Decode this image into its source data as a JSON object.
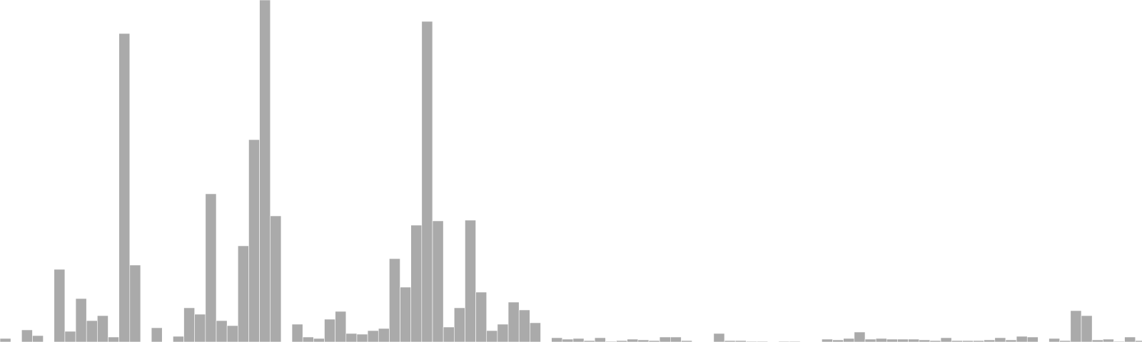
{
  "chart_data": {
    "type": "bar",
    "title": "",
    "xlabel": "",
    "ylabel": "",
    "ylim": [
      0,
      480
    ],
    "grid": false,
    "legend": "none",
    "bar_color": "#aaaaaa",
    "bar_edge_color": "#ffffff",
    "values": [
      5,
      0,
      17,
      9,
      0,
      102,
      15,
      61,
      30,
      37,
      7,
      433,
      108,
      0,
      20,
      0,
      8,
      48,
      39,
      208,
      30,
      23,
      135,
      284,
      480,
      177,
      0,
      25,
      7,
      5,
      32,
      43,
      12,
      11,
      16,
      19,
      117,
      77,
      164,
      450,
      170,
      21,
      48,
      171,
      70,
      16,
      25,
      56,
      45,
      27,
      0,
      6,
      4,
      5,
      2,
      6,
      1,
      2,
      4,
      3,
      2,
      7,
      7,
      2,
      0,
      0,
      12,
      2,
      2,
      1,
      1,
      0,
      1,
      1,
      0,
      0,
      4,
      3,
      5,
      14,
      4,
      5,
      4,
      4,
      4,
      3,
      2,
      6,
      2,
      2,
      2,
      3,
      6,
      3,
      8,
      7,
      0,
      5,
      2,
      44,
      37,
      3,
      4,
      1,
      7,
      2
    ]
  }
}
